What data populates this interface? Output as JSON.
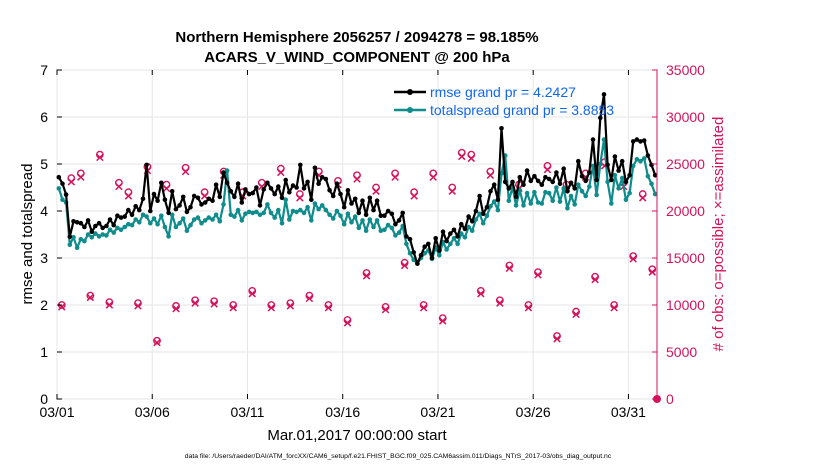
{
  "chart_data": {
    "type": "line",
    "title": "Northern Hemisphere 2056257 / 2094278 = 98.185%",
    "subtitle": "ACARS_V_WIND_COMPONENT @ 200 hPa",
    "xlabel": "Mar.01,2017 00:00:00 start",
    "ylabel": "rmse and totalspread",
    "y2label": "# of obs: o=possible; ×=assimilated",
    "footer": "data file: /Users/raeder/DAI/ATM_forcXX/CAM6_setup/f.e21.FHIST_BGC.f09_025.CAM6assim.011/Diags_NTrS_2017-03/obs_diag_output.nc",
    "xlim": [
      0,
      31.5
    ],
    "ylim": [
      0,
      7
    ],
    "y2lim": [
      0,
      35000
    ],
    "x_ticks": [
      0,
      5,
      10,
      15,
      20,
      25,
      30
    ],
    "x_tick_labels": [
      "03/01",
      "03/06",
      "03/11",
      "03/16",
      "03/21",
      "03/26",
      "03/31"
    ],
    "y_ticks": [
      0,
      1,
      2,
      3,
      4,
      5,
      6,
      7
    ],
    "y2_ticks": [
      0,
      5000,
      10000,
      15000,
      20000,
      25000,
      30000,
      35000
    ],
    "legend_position": "top-right",
    "colors": {
      "rmse": "#000000",
      "spread": "#0f8c8c",
      "obs": "#d4135c",
      "legend_text": "#1166ee",
      "axis": "#000000"
    },
    "series": [
      {
        "name": "rmse grand pr = 4.2427",
        "axis": "left",
        "values": [
          4.72,
          4.58,
          4.35,
          3.45,
          3.78,
          3.76,
          3.74,
          3.66,
          3.8,
          3.56,
          3.68,
          3.74,
          3.64,
          3.68,
          3.82,
          3.7,
          3.9,
          3.86,
          3.88,
          4.02,
          3.92,
          4.1,
          4.02,
          4.26,
          4.98,
          4.0,
          4.36,
          4.22,
          4.6,
          4.24,
          3.96,
          4.42,
          4.04,
          4.12,
          4.3,
          3.98,
          4.08,
          4.32,
          4.28,
          4.14,
          4.18,
          4.26,
          4.22,
          4.56,
          4.3,
          4.82,
          4.6,
          4.42,
          4.3,
          4.58,
          4.18,
          4.46,
          4.36,
          4.38,
          4.5,
          4.12,
          4.46,
          4.6,
          4.48,
          4.36,
          4.52,
          4.28,
          4.66,
          4.4,
          4.54,
          4.5,
          4.98,
          4.48,
          4.62,
          4.24,
          4.92,
          4.58,
          4.72,
          4.68,
          4.44,
          4.32,
          4.58,
          4.36,
          4.08,
          4.44,
          4.16,
          4.26,
          3.96,
          4.22,
          3.92,
          4.28,
          4.02,
          4.22,
          3.9,
          3.9,
          4.0,
          3.94,
          3.72,
          3.8,
          3.96,
          3.46,
          3.4,
          3.12,
          2.88,
          3.06,
          3.24,
          3.3,
          3.0,
          3.42,
          3.16,
          3.56,
          3.36,
          3.52,
          3.6,
          3.46,
          3.72,
          3.62,
          3.88,
          3.78,
          4.0,
          4.32,
          3.94,
          4.08,
          4.42,
          4.56,
          4.24,
          5.76,
          4.62,
          4.48,
          4.62,
          4.3,
          4.72,
          4.56,
          4.86,
          4.64,
          4.74,
          4.64,
          4.56,
          4.72,
          4.68,
          4.62,
          4.82,
          4.58,
          4.9,
          4.42,
          4.6,
          4.48,
          5.06,
          4.74,
          4.64,
          4.82,
          5.52,
          4.66,
          5.98,
          6.48,
          4.98,
          4.66,
          5.16,
          4.86,
          5.06,
          4.62,
          4.76,
          5.48,
          5.52,
          5.48,
          5.5,
          5.18,
          4.98,
          4.76
        ]
      },
      {
        "name": "totalspread grand pr = 3.8853",
        "axis": "left",
        "values": [
          4.48,
          4.24,
          4.18,
          3.28,
          3.44,
          3.22,
          3.4,
          3.36,
          3.5,
          3.44,
          3.52,
          3.46,
          3.5,
          3.48,
          3.6,
          3.54,
          3.64,
          3.6,
          3.66,
          3.72,
          3.7,
          3.82,
          3.76,
          3.92,
          3.88,
          3.74,
          3.84,
          3.72,
          3.9,
          3.66,
          3.46,
          3.92,
          3.66,
          3.74,
          3.84,
          3.58,
          3.7,
          3.82,
          3.86,
          3.74,
          3.8,
          3.86,
          3.82,
          3.92,
          3.78,
          4.14,
          4.86,
          3.92,
          3.88,
          4.02,
          3.8,
          3.94,
          3.98,
          3.96,
          3.98,
          3.92,
          3.96,
          4.14,
          3.96,
          3.86,
          4.02,
          3.74,
          4.24,
          3.82,
          4.0,
          3.98,
          4.02,
          3.96,
          4.08,
          3.8,
          4.16,
          4.04,
          4.12,
          4.02,
          3.92,
          3.84,
          4.0,
          3.9,
          3.72,
          3.94,
          3.76,
          3.88,
          3.64,
          3.8,
          3.58,
          3.82,
          3.66,
          3.8,
          3.58,
          3.6,
          3.7,
          3.64,
          3.48,
          3.54,
          3.68,
          3.3,
          3.1,
          2.96,
          2.88,
          3.0,
          3.1,
          3.16,
          2.98,
          3.22,
          3.06,
          3.34,
          3.18,
          3.3,
          3.42,
          3.3,
          3.52,
          3.44,
          3.66,
          3.58,
          3.82,
          3.94,
          3.74,
          3.9,
          4.1,
          4.2,
          4.02,
          4.8,
          5.18,
          4.22,
          4.5,
          4.12,
          4.44,
          4.12,
          4.38,
          4.16,
          4.4,
          4.18,
          4.16,
          4.4,
          4.38,
          4.22,
          4.5,
          4.2,
          4.48,
          4.06,
          4.32,
          4.14,
          4.56,
          4.42,
          4.32,
          4.52,
          4.96,
          4.34,
          5.0,
          5.52,
          4.62,
          4.16,
          4.76,
          4.48,
          4.7,
          4.24,
          4.38,
          4.96,
          5.1,
          5.06,
          5.12,
          4.74,
          4.58,
          4.36
        ]
      }
    ],
    "obs_possible": [
      {
        "x": 0.25,
        "y": 10000
      },
      {
        "x": 0.75,
        "y": 23500
      },
      {
        "x": 1.25,
        "y": 24000
      },
      {
        "x": 1.75,
        "y": 11000
      },
      {
        "x": 2.25,
        "y": 26000
      },
      {
        "x": 2.75,
        "y": 10300
      },
      {
        "x": 3.25,
        "y": 23000
      },
      {
        "x": 3.75,
        "y": 22000
      },
      {
        "x": 4.25,
        "y": 10200
      },
      {
        "x": 4.75,
        "y": 24700
      },
      {
        "x": 5.25,
        "y": 6200
      },
      {
        "x": 5.75,
        "y": 22800
      },
      {
        "x": 6.25,
        "y": 9900
      },
      {
        "x": 6.75,
        "y": 24600
      },
      {
        "x": 7.25,
        "y": 10500
      },
      {
        "x": 7.75,
        "y": 22000
      },
      {
        "x": 8.25,
        "y": 10400
      },
      {
        "x": 8.75,
        "y": 24200
      },
      {
        "x": 9.25,
        "y": 10000
      },
      {
        "x": 9.75,
        "y": 22000
      },
      {
        "x": 10.25,
        "y": 11500
      },
      {
        "x": 10.75,
        "y": 23000
      },
      {
        "x": 11.25,
        "y": 10000
      },
      {
        "x": 11.75,
        "y": 24500
      },
      {
        "x": 12.25,
        "y": 10200
      },
      {
        "x": 12.75,
        "y": 21800
      },
      {
        "x": 13.25,
        "y": 11000
      },
      {
        "x": 13.75,
        "y": 24200
      },
      {
        "x": 14.25,
        "y": 10000
      },
      {
        "x": 14.75,
        "y": 23200
      },
      {
        "x": 15.25,
        "y": 8400
      },
      {
        "x": 15.75,
        "y": 23800
      },
      {
        "x": 16.25,
        "y": 13400
      },
      {
        "x": 16.75,
        "y": 22500
      },
      {
        "x": 17.25,
        "y": 9800
      },
      {
        "x": 17.75,
        "y": 24000
      },
      {
        "x": 18.25,
        "y": 14500
      },
      {
        "x": 18.75,
        "y": 22000
      },
      {
        "x": 19.25,
        "y": 10000
      },
      {
        "x": 19.75,
        "y": 24000
      },
      {
        "x": 20.25,
        "y": 8600
      },
      {
        "x": 20.75,
        "y": 22500
      },
      {
        "x": 21.25,
        "y": 26200
      },
      {
        "x": 21.75,
        "y": 26000
      },
      {
        "x": 22.25,
        "y": 11500
      },
      {
        "x": 22.75,
        "y": 24200
      },
      {
        "x": 23.25,
        "y": 10500
      },
      {
        "x": 23.75,
        "y": 14200
      },
      {
        "x": 24.25,
        "y": 22800
      },
      {
        "x": 24.75,
        "y": 10000
      },
      {
        "x": 25.25,
        "y": 13500
      },
      {
        "x": 25.75,
        "y": 24800
      },
      {
        "x": 26.25,
        "y": 6700
      },
      {
        "x": 26.75,
        "y": 22800
      },
      {
        "x": 27.25,
        "y": 9300
      },
      {
        "x": 27.75,
        "y": 24000
      },
      {
        "x": 28.25,
        "y": 13000
      },
      {
        "x": 28.75,
        "y": 25200
      },
      {
        "x": 29.25,
        "y": 10000
      },
      {
        "x": 29.75,
        "y": 23000
      },
      {
        "x": 30.25,
        "y": 15200
      },
      {
        "x": 30.75,
        "y": 21800
      },
      {
        "x": 31.25,
        "y": 13800
      }
    ],
    "obs_assimilated": [
      {
        "x": 0.25,
        "y": 9800
      },
      {
        "x": 0.75,
        "y": 23100
      },
      {
        "x": 1.25,
        "y": 23600
      },
      {
        "x": 1.75,
        "y": 10800
      },
      {
        "x": 2.25,
        "y": 25700
      },
      {
        "x": 2.75,
        "y": 10000
      },
      {
        "x": 3.25,
        "y": 22600
      },
      {
        "x": 3.75,
        "y": 21600
      },
      {
        "x": 4.25,
        "y": 9900
      },
      {
        "x": 4.75,
        "y": 24300
      },
      {
        "x": 5.25,
        "y": 6000
      },
      {
        "x": 5.75,
        "y": 22400
      },
      {
        "x": 6.25,
        "y": 9600
      },
      {
        "x": 6.75,
        "y": 24200
      },
      {
        "x": 7.25,
        "y": 10200
      },
      {
        "x": 7.75,
        "y": 21600
      },
      {
        "x": 8.25,
        "y": 10100
      },
      {
        "x": 8.75,
        "y": 23800
      },
      {
        "x": 9.25,
        "y": 9700
      },
      {
        "x": 9.75,
        "y": 21600
      },
      {
        "x": 10.25,
        "y": 11200
      },
      {
        "x": 10.75,
        "y": 22600
      },
      {
        "x": 11.25,
        "y": 9700
      },
      {
        "x": 11.75,
        "y": 24100
      },
      {
        "x": 12.25,
        "y": 9900
      },
      {
        "x": 12.75,
        "y": 21400
      },
      {
        "x": 13.25,
        "y": 10700
      },
      {
        "x": 13.75,
        "y": 23800
      },
      {
        "x": 14.25,
        "y": 9700
      },
      {
        "x": 14.75,
        "y": 22800
      },
      {
        "x": 15.25,
        "y": 8100
      },
      {
        "x": 15.75,
        "y": 23400
      },
      {
        "x": 16.25,
        "y": 13100
      },
      {
        "x": 16.75,
        "y": 22100
      },
      {
        "x": 17.25,
        "y": 9500
      },
      {
        "x": 17.75,
        "y": 23600
      },
      {
        "x": 18.25,
        "y": 14200
      },
      {
        "x": 18.75,
        "y": 21600
      },
      {
        "x": 19.25,
        "y": 9700
      },
      {
        "x": 19.75,
        "y": 23600
      },
      {
        "x": 20.25,
        "y": 8300
      },
      {
        "x": 20.75,
        "y": 22100
      },
      {
        "x": 21.25,
        "y": 25800
      },
      {
        "x": 21.75,
        "y": 25600
      },
      {
        "x": 22.25,
        "y": 11200
      },
      {
        "x": 22.75,
        "y": 23800
      },
      {
        "x": 23.25,
        "y": 10200
      },
      {
        "x": 23.75,
        "y": 13900
      },
      {
        "x": 24.25,
        "y": 22400
      },
      {
        "x": 24.75,
        "y": 9700
      },
      {
        "x": 25.25,
        "y": 13200
      },
      {
        "x": 25.75,
        "y": 24400
      },
      {
        "x": 26.25,
        "y": 6400
      },
      {
        "x": 26.75,
        "y": 22400
      },
      {
        "x": 27.25,
        "y": 9000
      },
      {
        "x": 27.75,
        "y": 23600
      },
      {
        "x": 28.25,
        "y": 12700
      },
      {
        "x": 28.75,
        "y": 24800
      },
      {
        "x": 29.25,
        "y": 9700
      },
      {
        "x": 29.75,
        "y": 22600
      },
      {
        "x": 30.25,
        "y": 14900
      },
      {
        "x": 30.75,
        "y": 21400
      },
      {
        "x": 31.25,
        "y": 13500
      }
    ],
    "obs_zero_marker": {
      "x": 31.5,
      "y": 0
    }
  }
}
